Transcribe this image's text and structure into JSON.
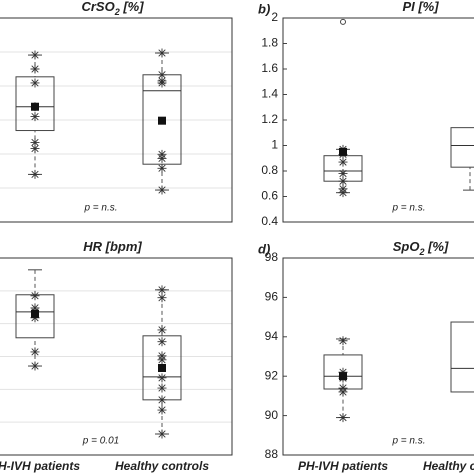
{
  "chart_data": [
    {
      "type": "box",
      "title_parts": [
        "CrSO",
        "2",
        " [%]"
      ],
      "annotation": "p = n.s.",
      "ylim": [
        0,
        6
      ],
      "yticks": [
        0,
        1,
        2,
        3,
        4,
        5,
        6
      ],
      "grid": true,
      "boxes": [
        {
          "min": 1.4,
          "q1": 2.69,
          "median": 3.39,
          "q3": 4.27,
          "max": 4.91,
          "mean": 3.39,
          "points": [
            4.91,
            4.5,
            4.09,
            3.39,
            3.1,
            2.34,
            2.16,
            1.4
          ]
        },
        {
          "min": 0.94,
          "q1": 1.7,
          "median": 3.86,
          "q3": 4.33,
          "max": 4.97,
          "mean": 2.98,
          "points": [
            4.97,
            4.33,
            4.15,
            4.09,
            1.99,
            1.87,
            1.58,
            0.94
          ]
        }
      ]
    },
    {
      "type": "box",
      "panel_label": "b)",
      "title_parts": [
        "PI [%]"
      ],
      "annotation": "p = n.s.",
      "ylim": [
        0.4,
        2
      ],
      "yticks": [
        0.4,
        0.6,
        0.8,
        1,
        1.2,
        1.4,
        1.6,
        1.8,
        2
      ],
      "grid": false,
      "boxes": [
        {
          "min": 0.63,
          "q1": 0.72,
          "median": 0.8,
          "q3": 0.92,
          "max": 0.97,
          "mean": 0.95,
          "points": [
            0.97,
            0.93,
            0.87,
            0.78,
            0.72,
            0.66,
            0.63
          ],
          "outliers": [
            1.97
          ]
        },
        {
          "min": 0.65,
          "q1": 0.83,
          "median": 1.0,
          "q3": 1.14
        }
      ]
    },
    {
      "type": "box",
      "title_parts": [
        "HR [bpm]"
      ],
      "annotation": "p = 0.01",
      "ylim": [
        0,
        6
      ],
      "yticks": [
        0,
        1,
        2,
        3,
        4,
        5,
        6
      ],
      "grid": true,
      "categories": [
        "PH-IVH patients",
        "Healthy controls"
      ],
      "boxes": [
        {
          "min": 2.71,
          "q1": 3.57,
          "median": 4.36,
          "q3": 4.88,
          "max": 5.64,
          "mean": 4.3,
          "points": [
            4.85,
            4.48,
            4.36,
            4.18,
            3.14,
            2.71
          ]
        },
        {
          "min": 0.64,
          "q1": 1.68,
          "median": 2.38,
          "q3": 3.63,
          "max": 5.03,
          "mean": 2.65,
          "points": [
            5.03,
            4.79,
            3.81,
            3.45,
            3.02,
            2.9,
            2.35,
            2.04,
            1.68,
            1.37,
            0.64
          ]
        }
      ]
    },
    {
      "type": "box",
      "panel_label": "d)",
      "title_parts": [
        "SpO",
        "2",
        " [%]"
      ],
      "annotation": "p = n.s.",
      "ylim": [
        88,
        98
      ],
      "yticks": [
        88,
        90,
        92,
        94,
        96,
        98
      ],
      "grid": false,
      "categories": [
        "PH-IVH patients",
        "Healthy controls"
      ],
      "boxes": [
        {
          "min": 89.9,
          "q1": 91.35,
          "median": 92.0,
          "q3": 93.08,
          "max": 93.89,
          "mean": 92.0,
          "points": [
            93.8,
            92.2,
            92.0,
            91.9,
            91.4,
            91.2,
            89.9
          ]
        },
        {
          "q1": 91.2,
          "median": 92.4,
          "q3": 94.75
        }
      ]
    }
  ]
}
